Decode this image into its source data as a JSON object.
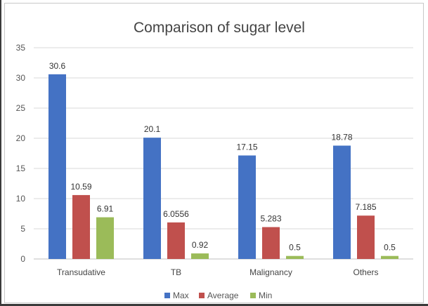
{
  "chart_data": {
    "type": "bar",
    "title": "Comparison of  sugar level",
    "categories": [
      "Transudative",
      "TB",
      "Malignancy",
      "Others"
    ],
    "series": [
      {
        "name": "Max",
        "values": [
          30.6,
          20.1,
          17.15,
          18.78
        ],
        "labels": [
          "30.6",
          "20.1",
          "17.15",
          "18.78"
        ],
        "color": "#4472c4"
      },
      {
        "name": "Average",
        "values": [
          10.59,
          6.0556,
          5.283,
          7.185
        ],
        "labels": [
          "10.59",
          "6.0556",
          "5.283",
          "7.185"
        ],
        "color": "#c0504d"
      },
      {
        "name": "Min",
        "values": [
          6.91,
          0.92,
          0.5,
          0.5
        ],
        "labels": [
          "6.91",
          "0.92",
          "0.5",
          "0.5"
        ],
        "color": "#9bbb59"
      }
    ],
    "ylim": [
      0,
      35
    ],
    "yticks": [
      0,
      5,
      10,
      15,
      20,
      25,
      30,
      35
    ],
    "grid": true,
    "legend_position": "bottom"
  }
}
